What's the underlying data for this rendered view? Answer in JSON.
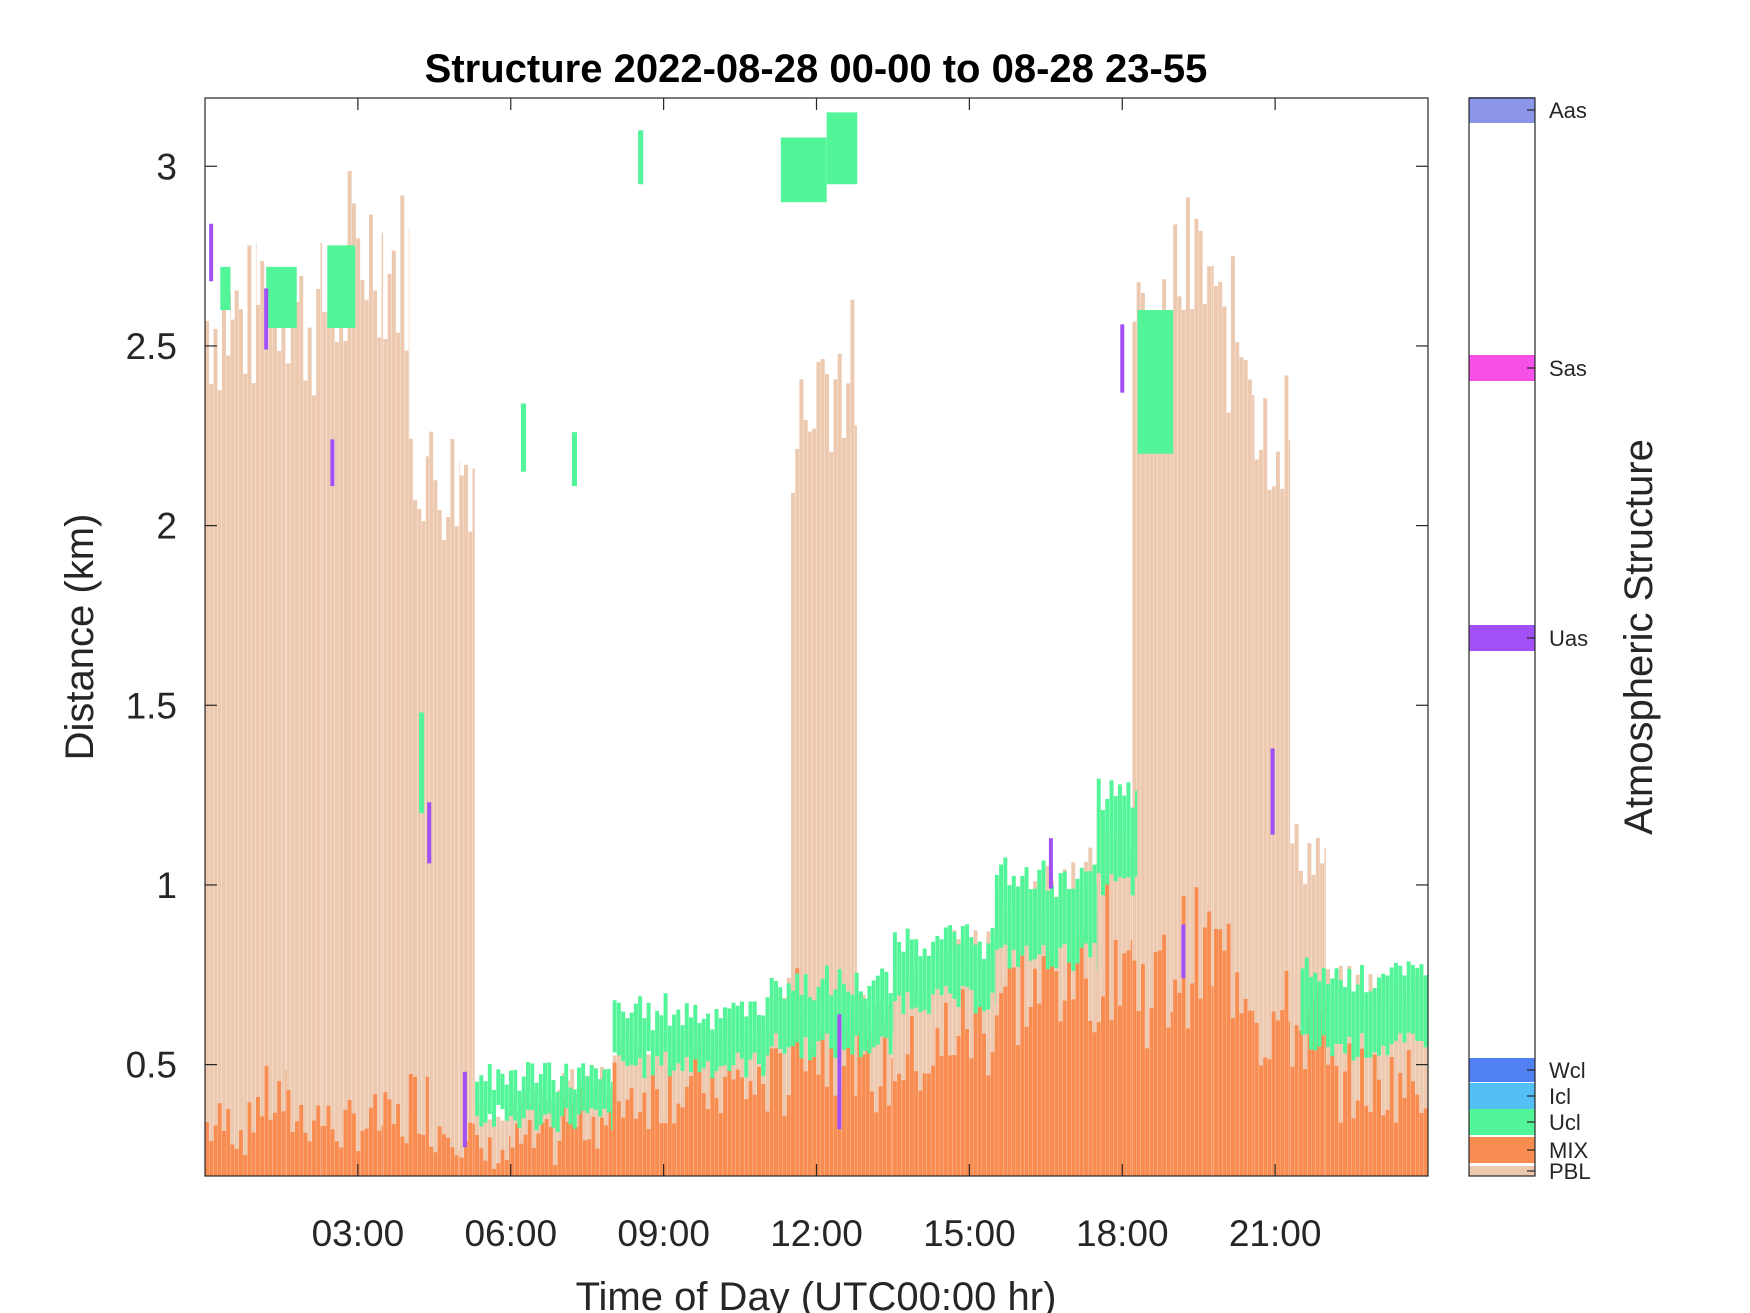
{
  "chart_data": {
    "type": "heatmap",
    "title": "Structure 2022-08-28 00-00 to 08-28 23-55",
    "xlabel": "Time of Day (UTC00:00 hr)",
    "ylabel": "Distance (km)",
    "colorbar_label": "Atmospheric Structure",
    "x_unit": "hours UTC",
    "xlim": [
      0,
      24
    ],
    "ylim": [
      0.19,
      3.19
    ],
    "x_ticks": [
      3,
      6,
      9,
      12,
      15,
      18,
      21
    ],
    "x_tick_labels": [
      "03:00",
      "06:00",
      "09:00",
      "12:00",
      "15:00",
      "18:00",
      "21:00"
    ],
    "y_ticks": [
      0.5,
      1,
      1.5,
      2,
      2.5,
      3
    ],
    "y_tick_labels": [
      "0.5",
      "1",
      "1.5",
      "2",
      "2.5",
      "3"
    ],
    "grid": false,
    "classes": [
      {
        "name": "PBL",
        "color": "#EDC9B0"
      },
      {
        "name": "MIX",
        "color": "#F98C50"
      },
      {
        "name": "Ucl",
        "color": "#52F598"
      },
      {
        "name": "Icl",
        "color": "#52BFF5"
      },
      {
        "name": "Wcl",
        "color": "#5080F2"
      },
      {
        "name": "Uas",
        "color": "#A050F5"
      },
      {
        "name": "Sas",
        "color": "#F750E8"
      },
      {
        "name": "Aas",
        "color": "#8C96E8"
      }
    ],
    "profiles": {
      "time_step_hours": 0.0833,
      "columns": [
        {
          "t_start": 0.0,
          "t_end": 0.5,
          "pbl_top": 2.6,
          "mix_top": 0.33
        },
        {
          "t_start": 0.5,
          "t_end": 1.0,
          "pbl_top": 2.6,
          "mix_top": 0.32
        },
        {
          "t_start": 1.0,
          "t_end": 1.6,
          "pbl_top": 2.68,
          "mix_top": 0.4
        },
        {
          "t_start": 1.6,
          "t_end": 2.3,
          "pbl_top": 2.6,
          "mix_top": 0.36
        },
        {
          "t_start": 2.3,
          "t_end": 2.8,
          "pbl_top": 2.65,
          "mix_top": 0.33
        },
        {
          "t_start": 2.8,
          "t_end": 3.5,
          "pbl_top": 2.8,
          "mix_top": 0.34
        },
        {
          "t_start": 3.5,
          "t_end": 4.0,
          "pbl_top": 2.75,
          "mix_top": 0.34
        },
        {
          "t_start": 4.0,
          "t_end": 4.4,
          "pbl_top": 2.2,
          "mix_top": 0.4
        },
        {
          "t_start": 4.4,
          "t_end": 5.0,
          "pbl_top": 2.15,
          "mix_top": 0.33
        },
        {
          "t_start": 5.0,
          "t_end": 5.3,
          "pbl_top": 2.2,
          "mix_top": 0.3
        },
        {
          "t_start": 5.3,
          "t_end": 6.0,
          "pbl_top": 0.38,
          "mix_top": 0.25
        },
        {
          "t_start": 6.0,
          "t_end": 7.0,
          "pbl_top": 0.4,
          "mix_top": 0.28
        },
        {
          "t_start": 7.0,
          "t_end": 8.0,
          "pbl_top": 0.46,
          "mix_top": 0.35
        },
        {
          "t_start": 8.0,
          "t_end": 9.0,
          "pbl_top": 0.55,
          "mix_top": 0.42
        },
        {
          "t_start": 9.0,
          "t_end": 10.0,
          "pbl_top": 0.58,
          "mix_top": 0.44
        },
        {
          "t_start": 10.0,
          "t_end": 11.0,
          "pbl_top": 0.6,
          "mix_top": 0.44
        },
        {
          "t_start": 11.0,
          "t_end": 11.5,
          "pbl_top": 0.7,
          "mix_top": 0.45
        },
        {
          "t_start": 11.5,
          "t_end": 12.0,
          "pbl_top": 2.3,
          "mix_top": 0.62
        },
        {
          "t_start": 12.0,
          "t_end": 12.8,
          "pbl_top": 2.45,
          "mix_top": 0.55
        },
        {
          "t_start": 12.8,
          "t_end": 13.5,
          "pbl_top": 0.66,
          "mix_top": 0.47
        },
        {
          "t_start": 13.5,
          "t_end": 14.5,
          "pbl_top": 0.76,
          "mix_top": 0.52
        },
        {
          "t_start": 14.5,
          "t_end": 15.5,
          "pbl_top": 0.84,
          "mix_top": 0.6
        },
        {
          "t_start": 15.5,
          "t_end": 16.5,
          "pbl_top": 0.95,
          "mix_top": 0.7
        },
        {
          "t_start": 16.5,
          "t_end": 17.5,
          "pbl_top": 1.05,
          "mix_top": 0.78
        },
        {
          "t_start": 17.5,
          "t_end": 18.2,
          "pbl_top": 1.2,
          "mix_top": 0.82
        },
        {
          "t_start": 18.2,
          "t_end": 19.0,
          "pbl_top": 2.5,
          "mix_top": 0.72
        },
        {
          "t_start": 19.0,
          "t_end": 19.8,
          "pbl_top": 2.72,
          "mix_top": 0.8
        },
        {
          "t_start": 19.8,
          "t_end": 20.6,
          "pbl_top": 2.55,
          "mix_top": 0.78
        },
        {
          "t_start": 20.6,
          "t_end": 21.3,
          "pbl_top": 2.3,
          "mix_top": 0.62
        },
        {
          "t_start": 21.3,
          "t_end": 22.0,
          "pbl_top": 1.1,
          "mix_top": 0.6
        },
        {
          "t_start": 22.0,
          "t_end": 23.0,
          "pbl_top": 0.72,
          "mix_top": 0.45
        },
        {
          "t_start": 23.0,
          "t_end": 24.0,
          "pbl_top": 0.72,
          "mix_top": 0.45
        }
      ],
      "cloud_top_layer": [
        {
          "t_start": 5.3,
          "t_end": 8.0,
          "class": "Ucl",
          "bottom": 0.35,
          "top": 0.47
        },
        {
          "t_start": 8.0,
          "t_end": 11.0,
          "class": "Ucl",
          "bottom": 0.5,
          "top": 0.65
        },
        {
          "t_start": 11.0,
          "t_end": 13.5,
          "class": "Ucl",
          "bottom": 0.55,
          "top": 0.72
        },
        {
          "t_start": 13.5,
          "t_end": 15.5,
          "class": "Ucl",
          "bottom": 0.68,
          "top": 0.85
        },
        {
          "t_start": 15.5,
          "t_end": 17.5,
          "class": "Ucl",
          "bottom": 0.8,
          "top": 1.02
        },
        {
          "t_start": 17.5,
          "t_end": 18.3,
          "class": "Ucl",
          "bottom": 1.0,
          "top": 1.25
        },
        {
          "t_start": 21.5,
          "t_end": 24.0,
          "class": "Ucl",
          "bottom": 0.55,
          "top": 0.75
        }
      ],
      "upper_clouds": [
        {
          "t_start": 0.3,
          "t_end": 0.5,
          "class": "Ucl",
          "bottom": 2.6,
          "top": 2.72
        },
        {
          "t_start": 1.2,
          "t_end": 1.8,
          "class": "Ucl",
          "bottom": 2.55,
          "top": 2.72
        },
        {
          "t_start": 2.4,
          "t_end": 2.95,
          "class": "Ucl",
          "bottom": 2.55,
          "top": 2.78
        },
        {
          "t_start": 8.5,
          "t_end": 8.6,
          "class": "Ucl",
          "bottom": 2.95,
          "top": 3.1
        },
        {
          "t_start": 11.3,
          "t_end": 12.2,
          "class": "Ucl",
          "bottom": 2.9,
          "top": 3.08
        },
        {
          "t_start": 12.2,
          "t_end": 12.8,
          "class": "Ucl",
          "bottom": 2.95,
          "top": 3.15
        },
        {
          "t_start": 6.2,
          "t_end": 6.3,
          "class": "Ucl",
          "bottom": 2.15,
          "top": 2.34
        },
        {
          "t_start": 7.2,
          "t_end": 7.3,
          "class": "Ucl",
          "bottom": 2.11,
          "top": 2.26
        },
        {
          "t_start": 18.3,
          "t_end": 19.0,
          "class": "Ucl",
          "bottom": 2.2,
          "top": 2.6
        },
        {
          "t_start": 4.2,
          "t_end": 4.3,
          "class": "Ucl",
          "bottom": 1.2,
          "top": 1.48
        }
      ],
      "aerosol_marks": [
        {
          "t": 0.12,
          "class": "Uas",
          "bottom": 2.68,
          "top": 2.84
        },
        {
          "t": 1.2,
          "class": "Uas",
          "bottom": 2.49,
          "top": 2.66
        },
        {
          "t": 2.5,
          "class": "Uas",
          "bottom": 2.11,
          "top": 2.24
        },
        {
          "t": 4.4,
          "class": "Uas",
          "bottom": 1.06,
          "top": 1.23
        },
        {
          "t": 5.1,
          "class": "Uas",
          "bottom": 0.27,
          "top": 0.48
        },
        {
          "t": 12.45,
          "class": "Uas",
          "bottom": 0.32,
          "top": 0.64
        },
        {
          "t": 16.6,
          "class": "Uas",
          "bottom": 0.99,
          "top": 1.13
        },
        {
          "t": 18.0,
          "class": "Uas",
          "bottom": 2.37,
          "top": 2.56
        },
        {
          "t": 19.2,
          "class": "Uas",
          "bottom": 0.74,
          "top": 0.89
        },
        {
          "t": 20.95,
          "class": "Uas",
          "bottom": 1.14,
          "top": 1.38
        }
      ]
    }
  }
}
